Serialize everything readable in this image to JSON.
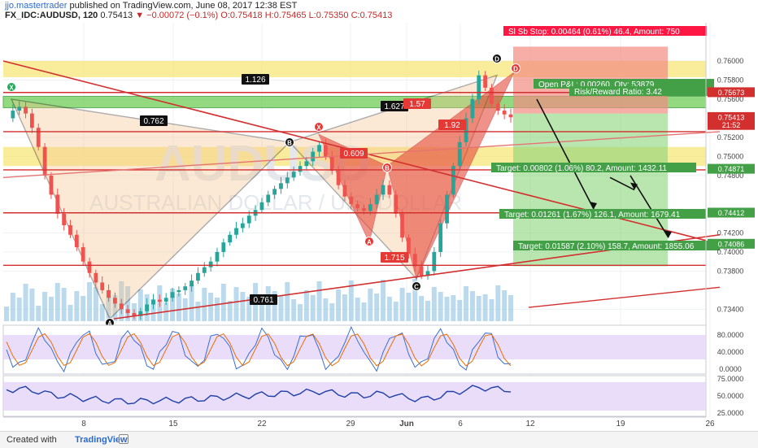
{
  "header": {
    "author": "jjo.mastertrader",
    "published": "published on TradingView.com, June 08, 2017 12:38 EST",
    "symbol": "FX_IDC:AUDUSD, 120",
    "last": "0.75413",
    "change": "−0.00072 (−0.1%)",
    "o": "O:0.75418",
    "h": "H:0.75465",
    "l": "L:0.75350",
    "c": "C:0.75413"
  },
  "footer": {
    "created_with": "Created with",
    "brand": "TradingView"
  },
  "colors": {
    "bull": "#26a69a",
    "bear": "#ef5350",
    "volume": "#9ecbe6",
    "red_line": "#d32f2f",
    "black_line": "#111111",
    "yellow_zone": "#f7e67a",
    "green_zone": "#7fd36a",
    "stop_box": "#f28b82",
    "target_box": "#8bd67a",
    "osc_band": "#e4d4f7"
  },
  "chart_data": {
    "type": "candlestick",
    "title": "AUDUSD 120",
    "y_range": [
      0.7325,
      0.764
    ],
    "x_ticks": [
      "8",
      "15",
      "22",
      "29",
      "Jun",
      "6",
      "12",
      "19",
      "26"
    ],
    "y_ticks": [
      "0.76000",
      "0.75800",
      "0.75600",
      "0.75200",
      "0.75000",
      "0.74800",
      "0.74200",
      "0.74000",
      "0.73800",
      "0.73400"
    ],
    "price_labels": [
      {
        "text": "0.75673",
        "value": 0.75673,
        "color": "#d32f2f"
      },
      {
        "text": "0.75413",
        "value": 0.75413,
        "color": "#d32f2f"
      },
      {
        "text": "21:52",
        "value": 0.7533,
        "color": "#d32f2f"
      },
      {
        "text": "0.74871",
        "value": 0.74871,
        "color": "#43a047"
      },
      {
        "text": "0.74412",
        "value": 0.74412,
        "color": "#43a047"
      },
      {
        "text": "0.74086",
        "value": 0.74086,
        "color": "#43a047"
      }
    ],
    "trade_boxes": [
      {
        "text": "Sl Sb Stop: 0.00464 (0.61%) 46.4, Amount: 750",
        "color": "#ff1744"
      },
      {
        "text": "Open P&L: 0.00260, Qty: 53879",
        "color": "#43a047"
      },
      {
        "text": "Risk/Reward Ratio: 3.42",
        "color": "#43a047"
      },
      {
        "text": "Target: 0.00802 (1.06%) 80.2, Amount: 1432.11",
        "color": "#43a047"
      },
      {
        "text": "Target: 0.01261 (1.67%) 126.1, Amount: 1679.41",
        "color": "#43a047"
      },
      {
        "text": "Target: 0.01587 (2.10%) 158.7, Amount: 1855.06",
        "color": "#43a047"
      }
    ],
    "pattern_points": [
      {
        "label": "X",
        "date": "May 3",
        "price": 0.756
      },
      {
        "label": "A",
        "date": "May 9",
        "price": 0.733
      },
      {
        "label": "B",
        "date": "May 23",
        "price": 0.7515
      },
      {
        "label": "C",
        "date": "Jun 1",
        "price": 0.7372
      },
      {
        "label": "D",
        "date": "Jun 8",
        "price": 0.7585
      }
    ],
    "ratios": [
      "1.126",
      "0.762",
      "1.627",
      "1.57",
      "0.609",
      "1.92",
      "1.715",
      "0.761"
    ],
    "stoch_levels": [
      "80.0000",
      "40.0000",
      "0.0000"
    ],
    "rsi_levels": [
      "75.0000",
      "50.0000",
      "25.0000"
    ],
    "watermark": "AUDUSD",
    "watermark_sub": "AUSTRALIAN DOLLAR / U.S. DOLLAR",
    "grid": true,
    "price_series": [
      0.754,
      0.7548,
      0.7552,
      0.7545,
      0.753,
      0.751,
      0.748,
      0.746,
      0.744,
      0.7428,
      0.7418,
      0.7405,
      0.739,
      0.7378,
      0.7368,
      0.736,
      0.7352,
      0.7346,
      0.734,
      0.7336,
      0.7333,
      0.7338,
      0.7345,
      0.735,
      0.7348,
      0.7352,
      0.7358,
      0.736,
      0.7364,
      0.737,
      0.7378,
      0.7384,
      0.739,
      0.74,
      0.741,
      0.7418,
      0.7425,
      0.743,
      0.7438,
      0.7444,
      0.7452,
      0.746,
      0.7466,
      0.7472,
      0.7478,
      0.7484,
      0.749,
      0.7495,
      0.7505,
      0.7512,
      0.75,
      0.7485,
      0.747,
      0.7458,
      0.745,
      0.7446,
      0.7443,
      0.745,
      0.746,
      0.747,
      0.746,
      0.744,
      0.7415,
      0.7398,
      0.7385,
      0.7375,
      0.738,
      0.74,
      0.743,
      0.746,
      0.749,
      0.7515,
      0.754,
      0.756,
      0.7585,
      0.7572,
      0.7555,
      0.7548,
      0.7544,
      0.7541
    ]
  }
}
